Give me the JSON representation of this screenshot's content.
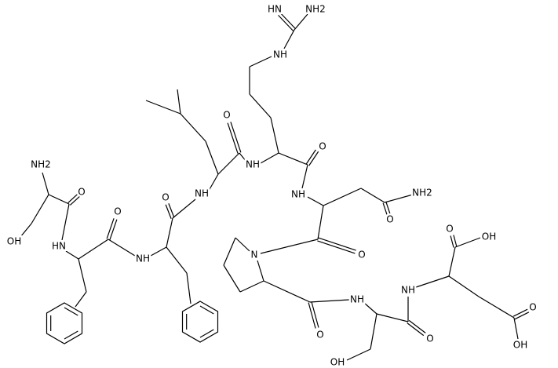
{
  "atom_labels": [
    "HN",
    "NH2",
    "NH",
    "NH2",
    "OH",
    "O",
    "HN",
    "O",
    "NH",
    "O",
    "NH",
    "O",
    "NH",
    "O",
    "NH",
    "NH2",
    "O",
    "N",
    "O",
    "NH",
    "O",
    "NH",
    "O",
    "OH",
    "O",
    "OH",
    "O",
    "OH"
  ]
}
